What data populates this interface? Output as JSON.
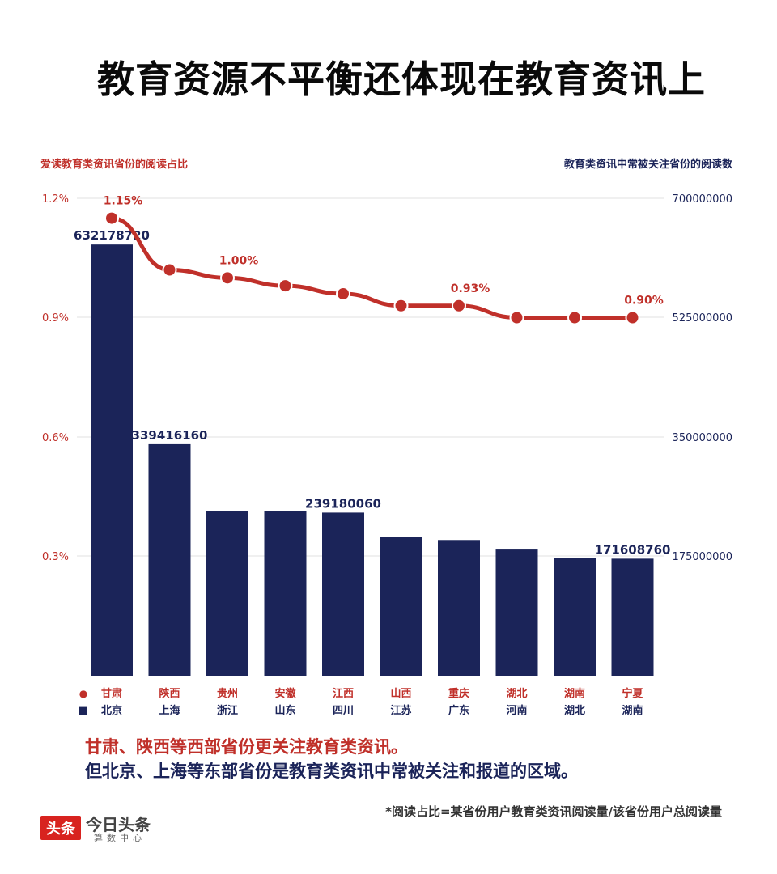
{
  "title": "教育资源不平衡还体现在教育资讯上",
  "chart_data": {
    "type": "bar",
    "left_axis_title": "爱读教育类资讯省份的阅读占比",
    "right_axis_title": "教育类资讯中常被关注省份的阅读数",
    "left_ticks": [
      "1.2%",
      "0.9%",
      "0.6%",
      "0.3%"
    ],
    "right_ticks": [
      "700000000",
      "525000000",
      "350000000",
      "175000000"
    ],
    "left_ylim": [
      0,
      1.2
    ],
    "right_ylim": [
      0,
      700000000
    ],
    "line_series": {
      "name": "阅读占比",
      "categories": [
        "甘肃",
        "陕西",
        "贵州",
        "安徽",
        "江西",
        "山西",
        "重庆",
        "湖北",
        "湖南",
        "宁夏"
      ],
      "values": [
        1.15,
        1.02,
        1.0,
        0.98,
        0.96,
        0.93,
        0.93,
        0.9,
        0.9,
        0.9
      ],
      "labels": [
        "1.15%",
        "",
        "1.00%",
        "",
        "",
        "",
        "0.93%",
        "",
        "",
        "0.90%"
      ]
    },
    "bar_series": {
      "name": "阅读数",
      "categories": [
        "北京",
        "上海",
        "浙江",
        "山东",
        "四川",
        "江苏",
        "广东",
        "河南",
        "湖北",
        "湖南"
      ],
      "values": [
        632178720,
        339416160,
        242000000,
        242000000,
        239180060,
        204000000,
        199000000,
        185000000,
        172500000,
        171608760
      ],
      "labels": [
        "632178720",
        "339416160",
        "",
        "",
        "239180060",
        "",
        "",
        "",
        "",
        "171608760"
      ]
    },
    "legend": {
      "line_marker": "●",
      "bar_marker": "■"
    },
    "colors": {
      "line": "#c0302a",
      "bar": "#1b2459",
      "grid": "#e2e2e2"
    }
  },
  "notes": {
    "line1": "甘肃、陕西等西部省份更关注教育类资讯。",
    "line2": "但北京、上海等东部省份是教育类资讯中常被关注和报道的区域。"
  },
  "footnote": "*阅读占比=某省份用户教育类资讯阅读量/该省份用户总阅读量",
  "logo": {
    "badge": "头条",
    "name": "今日头条",
    "sub": "算数中心"
  }
}
